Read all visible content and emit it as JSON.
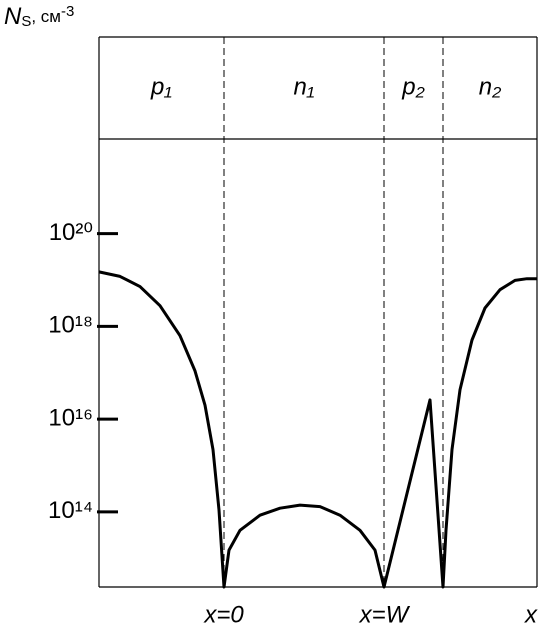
{
  "chart_data": {
    "type": "line",
    "y_label": {
      "symbol": "N",
      "subscript": "S",
      "unit": ", см",
      "exponent": "-3"
    },
    "regions": [
      "p₁",
      "n₁",
      "p₂",
      "n₂"
    ],
    "junctions": [
      0,
      160,
      219
    ],
    "x": [
      -125,
      -104,
      -84,
      -64,
      -44,
      -29,
      -19,
      -11,
      -5,
      0,
      5,
      16,
      36,
      56,
      76,
      96,
      116,
      136,
      151,
      160,
      206,
      219,
      222,
      228,
      236,
      248,
      261,
      276,
      291,
      303,
      313
    ],
    "values": [
      1.5e+19,
      1.2e+19,
      7.2e+18,
      2.8e+18,
      6.3e+17,
      1.1e+17,
      2e+16,
      2200000000000000.0,
      110000000000000.0,
      2400000000000.0,
      15000000000000.0,
      40000000000000.0,
      85000000000000.0,
      120000000000000.0,
      140000000000000.0,
      130000000000000.0,
      85000000000000.0,
      40000000000000.0,
      15000000000000.0,
      2400000000000.0,
      2.6e+16,
      2400000000000.0,
      40000000000000.0,
      2200000000000000.0,
      4.3e+16,
      5.1e+17,
      2.5e+18,
      6.2e+18,
      9.8e+18,
      1.07e+19,
      1.07e+19
    ],
    "color": "#000000",
    "xlim": [
      -125,
      313
    ],
    "xticks": [
      {
        "value": 0,
        "label": "x=0"
      },
      {
        "value": 160,
        "label": "x=W"
      },
      {
        "value": 313,
        "label": "x"
      }
    ],
    "ylim": [
      2400000000000.0,
      1.1e+22
    ],
    "log_y": true,
    "yticks": [
      {
        "value": 100000000000000.0,
        "label": "10¹⁴"
      },
      {
        "value": 1e+16,
        "label": "10¹⁶"
      },
      {
        "value": 1e+18,
        "label": "10¹⁸"
      },
      {
        "value": 1e+20,
        "label": "10²⁰"
      }
    ]
  }
}
